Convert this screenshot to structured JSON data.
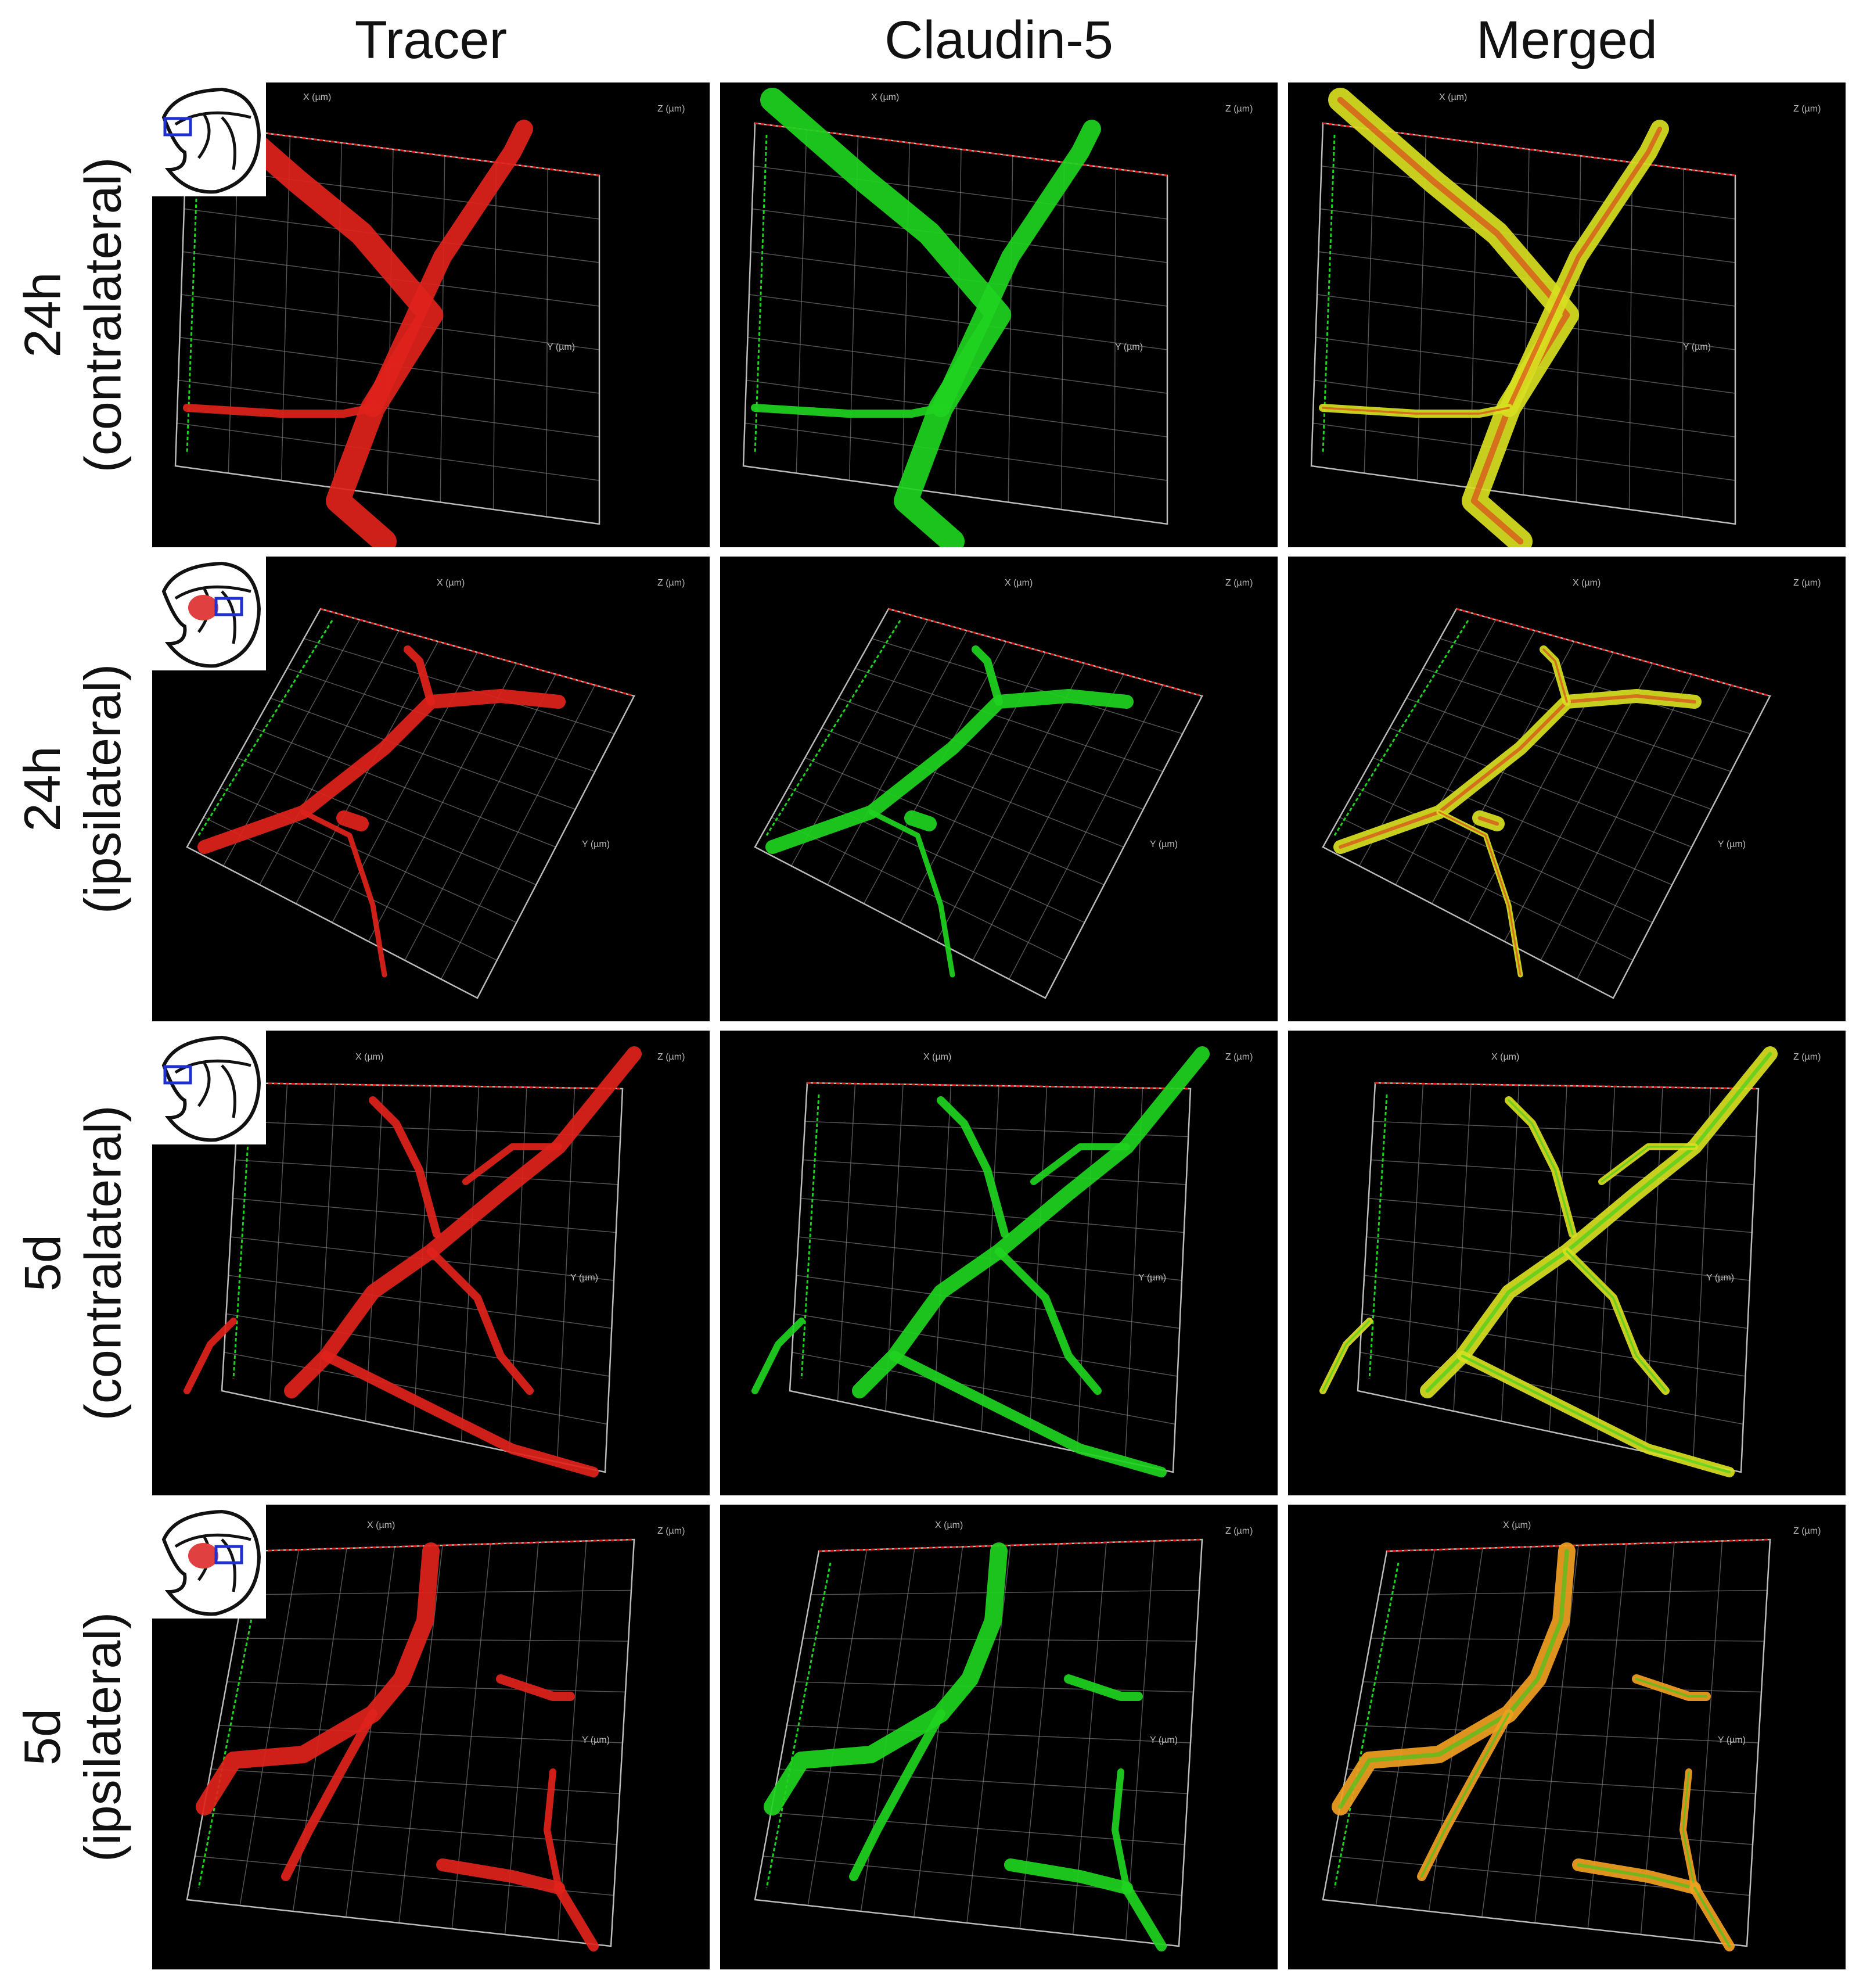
{
  "columns": [
    "Tracer",
    "Claudin-5",
    "Merged"
  ],
  "rows": [
    {
      "time": "24h",
      "side": "(contralateral)",
      "lesion": false
    },
    {
      "time": "24h",
      "side": "(ipsilateral)",
      "lesion": true
    },
    {
      "time": "5d",
      "side": "(contralateral)",
      "lesion": false
    },
    {
      "time": "5d",
      "side": "(ipsilateral)",
      "lesion": true
    }
  ],
  "axis_labels": {
    "x": "X (µm)",
    "y": "Y (µm)",
    "z": "Z (µm)"
  },
  "colors": {
    "tracer": "#e0231b",
    "claudin": "#1fd41f",
    "merged": "#d8e020",
    "merged_ipsi": "#f0a020",
    "grid": "#8a8a8a",
    "inset_box": "#2030d0",
    "lesion": "#e04040"
  }
}
